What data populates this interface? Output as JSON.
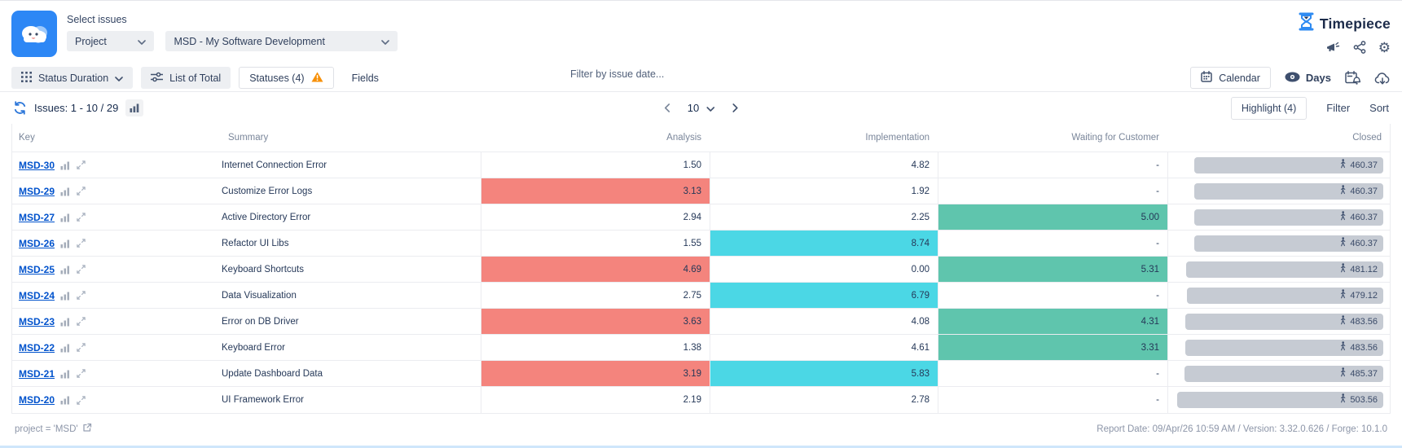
{
  "header": {
    "select_issues_label": "Select issues",
    "issue_source": "Project",
    "project": "MSD - My Software Development",
    "brand": "Timepiece"
  },
  "toolbar": {
    "report_type_label": "Status Duration",
    "list_of_total_label": "List of Total",
    "statuses_label": "Statuses (4)",
    "fields_label": "Fields",
    "date_filter_placeholder": "Filter by issue date...",
    "calendar_label": "Calendar",
    "days_label": "Days"
  },
  "issues_bar": {
    "issues_count_label": "Issues: 1 - 10 / 29",
    "page_size": "10",
    "highlight_label": "Highlight (4)",
    "filter_label": "Filter",
    "sort_label": "Sort"
  },
  "table": {
    "columns": [
      "Key",
      "Summary",
      "Analysis",
      "Implementation",
      "Waiting for Customer",
      "Closed"
    ],
    "rows": [
      {
        "key": "MSD-30",
        "summary": "Internet Connection Error",
        "analysis": {
          "value": "1.50",
          "color": null
        },
        "implementation": {
          "value": "4.82",
          "color": null
        },
        "waiting_for_customer": {
          "value": "-",
          "color": null
        },
        "closed": {
          "value": "460.37"
        }
      },
      {
        "key": "MSD-29",
        "summary": "Customize Error Logs",
        "analysis": {
          "value": "3.13",
          "color": "red"
        },
        "implementation": {
          "value": "1.92",
          "color": null
        },
        "waiting_for_customer": {
          "value": "-",
          "color": null
        },
        "closed": {
          "value": "460.37"
        }
      },
      {
        "key": "MSD-27",
        "summary": "Active Directory Error",
        "analysis": {
          "value": "2.94",
          "color": null
        },
        "implementation": {
          "value": "2.25",
          "color": null
        },
        "waiting_for_customer": {
          "value": "5.00",
          "color": "green"
        },
        "closed": {
          "value": "460.37"
        }
      },
      {
        "key": "MSD-26",
        "summary": "Refactor UI Libs",
        "analysis": {
          "value": "1.55",
          "color": null
        },
        "implementation": {
          "value": "8.74",
          "color": "cyan"
        },
        "waiting_for_customer": {
          "value": "-",
          "color": null
        },
        "closed": {
          "value": "460.37"
        }
      },
      {
        "key": "MSD-25",
        "summary": "Keyboard Shortcuts",
        "analysis": {
          "value": "4.69",
          "color": "red"
        },
        "implementation": {
          "value": "0.00",
          "color": null
        },
        "waiting_for_customer": {
          "value": "5.31",
          "color": "green"
        },
        "closed": {
          "value": "481.12"
        }
      },
      {
        "key": "MSD-24",
        "summary": "Data Visualization",
        "analysis": {
          "value": "2.75",
          "color": null
        },
        "implementation": {
          "value": "6.79",
          "color": "cyan"
        },
        "waiting_for_customer": {
          "value": "-",
          "color": null
        },
        "closed": {
          "value": "479.12"
        }
      },
      {
        "key": "MSD-23",
        "summary": "Error on DB Driver",
        "analysis": {
          "value": "3.63",
          "color": "red"
        },
        "implementation": {
          "value": "4.08",
          "color": null
        },
        "waiting_for_customer": {
          "value": "4.31",
          "color": "green"
        },
        "closed": {
          "value": "483.56"
        }
      },
      {
        "key": "MSD-22",
        "summary": "Keyboard Error",
        "analysis": {
          "value": "1.38",
          "color": null
        },
        "implementation": {
          "value": "4.61",
          "color": null
        },
        "waiting_for_customer": {
          "value": "3.31",
          "color": "green"
        },
        "closed": {
          "value": "483.56"
        }
      },
      {
        "key": "MSD-21",
        "summary": "Update Dashboard Data",
        "analysis": {
          "value": "3.19",
          "color": "red"
        },
        "implementation": {
          "value": "5.83",
          "color": "cyan"
        },
        "waiting_for_customer": {
          "value": "-",
          "color": null
        },
        "closed": {
          "value": "485.37"
        }
      },
      {
        "key": "MSD-20",
        "summary": "UI Framework Error",
        "analysis": {
          "value": "2.19",
          "color": null
        },
        "implementation": {
          "value": "2.78",
          "color": null
        },
        "waiting_for_customer": {
          "value": "-",
          "color": null
        },
        "closed": {
          "value": "503.56"
        }
      }
    ]
  },
  "footer": {
    "jql": "project = 'MSD'",
    "report_info": "Report Date: 09/Apr/26 10:59 AM / Version: 3.32.0.626 / Forge: 10.1.0"
  },
  "colors": {
    "highlight_red": "#f4847d",
    "highlight_cyan": "#4bd7e5",
    "highlight_green": "#5fc5ad",
    "closed_pill": "#c6cbd3",
    "link_blue": "#0052cc",
    "brand_navy": "#1c2b4a",
    "warning_orange": "#f79009",
    "app_blue": "#2d87f5"
  },
  "icons": {
    "app_logo": "cloud-smiley",
    "brand_mark": "hourglass",
    "header_actions": [
      "megaphone",
      "share-nodes",
      "gear"
    ],
    "report_type": "grid-dots",
    "list_of_total": "sliders",
    "statuses_warning": "warning-triangle",
    "calendar": "calendar",
    "days": "eye",
    "schedule": "calendar-bell",
    "export": "cloud-download",
    "refresh": "refresh-arrows",
    "issue_row": [
      "bar-chart",
      "expand-diagonal"
    ],
    "closed_pill": "walking-person",
    "jql_link": "external-link"
  }
}
